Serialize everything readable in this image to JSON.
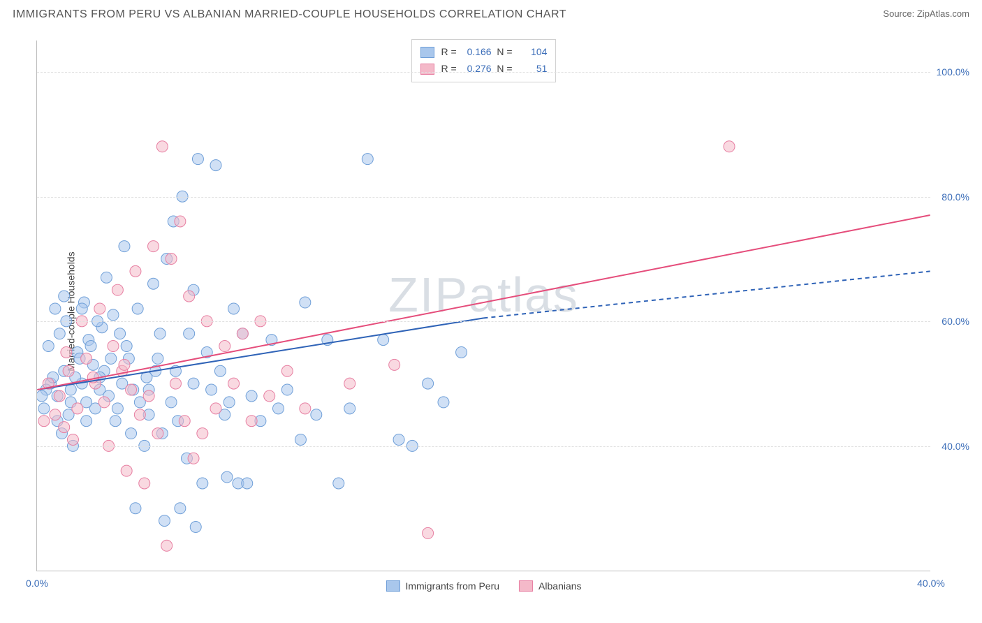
{
  "header": {
    "title": "IMMIGRANTS FROM PERU VS ALBANIAN MARRIED-COUPLE HOUSEHOLDS CORRELATION CHART",
    "source_label": "Source:",
    "source_name": "ZipAtlas.com"
  },
  "chart": {
    "type": "scatter",
    "ylabel": "Married-couple Households",
    "watermark": "ZIPatlas",
    "xlim": [
      0,
      40
    ],
    "ylim": [
      20,
      105
    ],
    "ytick_values": [
      40,
      60,
      80,
      100
    ],
    "ytick_labels": [
      "40.0%",
      "60.0%",
      "80.0%",
      "100.0%"
    ],
    "xtick_values": [
      0,
      40
    ],
    "xtick_labels": [
      "0.0%",
      "40.0%"
    ],
    "grid_color": "#e0e0e0",
    "axis_color": "#bdbdbd",
    "tick_label_color": "#3b6db8",
    "background_color": "#ffffff",
    "marker_radius": 8,
    "marker_opacity": 0.55,
    "series": [
      {
        "name": "Immigrants from Peru",
        "color_fill": "#a9c7ec",
        "color_stroke": "#6f9fd8",
        "r": "0.166",
        "n": "104",
        "trend": {
          "x1": 0,
          "y1": 49,
          "x2_solid": 20,
          "y2_solid": 60.5,
          "x2_dash": 40,
          "y2_dash": 68,
          "color": "#2f63b7",
          "width": 2
        },
        "points": [
          [
            0.3,
            46
          ],
          [
            0.6,
            50
          ],
          [
            0.9,
            48
          ],
          [
            1.2,
            52
          ],
          [
            1.5,
            47
          ],
          [
            1.8,
            55
          ],
          [
            2.0,
            50
          ],
          [
            2.2,
            44
          ],
          [
            2.5,
            53
          ],
          [
            2.8,
            49
          ],
          [
            0.5,
            56
          ],
          [
            1.0,
            58
          ],
          [
            1.4,
            45
          ],
          [
            1.7,
            51
          ],
          [
            2.3,
            57
          ],
          [
            2.6,
            46
          ],
          [
            3.0,
            52
          ],
          [
            3.2,
            48
          ],
          [
            3.5,
            44
          ],
          [
            3.8,
            50
          ],
          [
            0.8,
            62
          ],
          [
            1.3,
            60
          ],
          [
            2.1,
            63
          ],
          [
            2.9,
            59
          ],
          [
            3.4,
            61
          ],
          [
            4.0,
            56
          ],
          [
            4.3,
            49
          ],
          [
            4.6,
            47
          ],
          [
            5.0,
            45
          ],
          [
            5.3,
            52
          ],
          [
            1.1,
            42
          ],
          [
            1.6,
            40
          ],
          [
            4.2,
            42
          ],
          [
            4.8,
            40
          ],
          [
            5.6,
            42
          ],
          [
            6.0,
            47
          ],
          [
            6.3,
            44
          ],
          [
            6.7,
            38
          ],
          [
            7.0,
            50
          ],
          [
            7.4,
            34
          ],
          [
            5.2,
            66
          ],
          [
            5.8,
            70
          ],
          [
            6.1,
            76
          ],
          [
            6.5,
            80
          ],
          [
            7.2,
            86
          ],
          [
            8.0,
            85
          ],
          [
            8.6,
            47
          ],
          [
            9.0,
            34
          ],
          [
            9.4,
            34
          ],
          [
            10.0,
            44
          ],
          [
            3.1,
            67
          ],
          [
            3.9,
            72
          ],
          [
            4.5,
            62
          ],
          [
            5.5,
            58
          ],
          [
            7.8,
            49
          ],
          [
            8.4,
            45
          ],
          [
            10.5,
            57
          ],
          [
            11.2,
            49
          ],
          [
            12.0,
            63
          ],
          [
            13.0,
            57
          ],
          [
            11.8,
            41
          ],
          [
            12.5,
            45
          ],
          [
            14.0,
            46
          ],
          [
            14.8,
            86
          ],
          [
            15.5,
            57
          ],
          [
            16.2,
            41
          ],
          [
            16.8,
            40
          ],
          [
            17.5,
            50
          ],
          [
            18.2,
            47
          ],
          [
            19.0,
            55
          ],
          [
            0.4,
            49
          ],
          [
            0.7,
            51
          ],
          [
            1.9,
            54
          ],
          [
            2.4,
            56
          ],
          [
            3.3,
            54
          ],
          [
            3.7,
            58
          ],
          [
            4.1,
            54
          ],
          [
            4.9,
            51
          ],
          [
            5.4,
            54
          ],
          [
            6.2,
            52
          ],
          [
            1.2,
            64
          ],
          [
            2.0,
            62
          ],
          [
            2.7,
            60
          ],
          [
            0.2,
            48
          ],
          [
            0.9,
            44
          ],
          [
            1.5,
            49
          ],
          [
            2.2,
            47
          ],
          [
            2.8,
            51
          ],
          [
            3.6,
            46
          ],
          [
            5.0,
            49
          ],
          [
            6.8,
            58
          ],
          [
            7.6,
            55
          ],
          [
            8.2,
            52
          ],
          [
            9.6,
            48
          ],
          [
            10.8,
            46
          ],
          [
            7.0,
            65
          ],
          [
            8.8,
            62
          ],
          [
            9.2,
            58
          ],
          [
            4.4,
            30
          ],
          [
            5.7,
            28
          ],
          [
            6.4,
            30
          ],
          [
            7.1,
            27
          ],
          [
            8.5,
            35
          ],
          [
            13.5,
            34
          ]
        ]
      },
      {
        "name": "Albanians",
        "color_fill": "#f4b9c9",
        "color_stroke": "#e77fa2",
        "r": "0.276",
        "n": "51",
        "trend": {
          "x1": 0,
          "y1": 49,
          "x2_solid": 40,
          "y2_solid": 77,
          "x2_dash": 40,
          "y2_dash": 77,
          "color": "#e54d7b",
          "width": 2
        },
        "points": [
          [
            0.5,
            50
          ],
          [
            1.0,
            48
          ],
          [
            1.4,
            52
          ],
          [
            1.8,
            46
          ],
          [
            2.2,
            54
          ],
          [
            2.6,
            50
          ],
          [
            3.0,
            47
          ],
          [
            3.4,
            56
          ],
          [
            3.8,
            52
          ],
          [
            4.2,
            49
          ],
          [
            0.8,
            45
          ],
          [
            1.2,
            43
          ],
          [
            1.6,
            41
          ],
          [
            4.6,
            45
          ],
          [
            5.0,
            48
          ],
          [
            5.4,
            42
          ],
          [
            5.8,
            24
          ],
          [
            6.2,
            50
          ],
          [
            6.6,
            44
          ],
          [
            7.0,
            38
          ],
          [
            2.0,
            60
          ],
          [
            2.8,
            62
          ],
          [
            3.6,
            65
          ],
          [
            4.4,
            68
          ],
          [
            5.2,
            72
          ],
          [
            6.0,
            70
          ],
          [
            6.8,
            64
          ],
          [
            7.6,
            60
          ],
          [
            8.4,
            56
          ],
          [
            9.2,
            58
          ],
          [
            3.2,
            40
          ],
          [
            4.0,
            36
          ],
          [
            4.8,
            34
          ],
          [
            7.4,
            42
          ],
          [
            8.0,
            46
          ],
          [
            8.8,
            50
          ],
          [
            9.6,
            44
          ],
          [
            10.4,
            48
          ],
          [
            11.2,
            52
          ],
          [
            12.0,
            46
          ],
          [
            5.6,
            88
          ],
          [
            6.4,
            76
          ],
          [
            10.0,
            60
          ],
          [
            14.0,
            50
          ],
          [
            16.0,
            53
          ],
          [
            17.5,
            26
          ],
          [
            31.0,
            88
          ],
          [
            1.3,
            55
          ],
          [
            2.5,
            51
          ],
          [
            3.9,
            53
          ],
          [
            0.3,
            44
          ]
        ]
      }
    ],
    "legend_bottom": [
      {
        "label": "Immigrants from Peru",
        "fill": "#a9c7ec",
        "stroke": "#6f9fd8"
      },
      {
        "label": "Albanians",
        "fill": "#f4b9c9",
        "stroke": "#e77fa2"
      }
    ]
  }
}
